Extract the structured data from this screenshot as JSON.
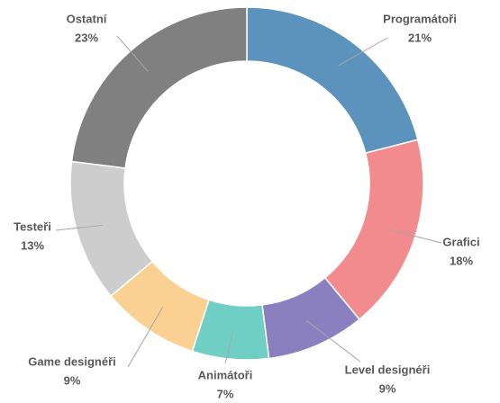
{
  "chart_data": {
    "type": "donut",
    "categories": [
      "Programátoři",
      "Grafici",
      "Level designéři",
      "Animátoři",
      "Game designéři",
      "Testeři",
      "Ostatní"
    ],
    "values": [
      21,
      18,
      9,
      7,
      9,
      13,
      23
    ],
    "value_labels": [
      "21%",
      "18%",
      "9%",
      "7%",
      "9%",
      "13%",
      "23%"
    ],
    "colors": [
      "#5b93bd",
      "#f28b8e",
      "#8a80c0",
      "#70cfc4",
      "#fbd193",
      "#cdcdcd",
      "#808080"
    ]
  }
}
